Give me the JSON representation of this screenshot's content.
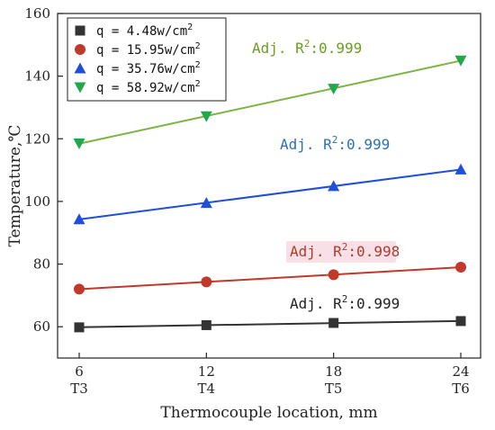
{
  "chart_data": {
    "type": "line",
    "xlabel": "Thermocouple location, mm",
    "ylabel": "Temperature,℃",
    "x": [
      6,
      12,
      18,
      24
    ],
    "x_secondary_labels": [
      "T3",
      "T4",
      "T5",
      "T6"
    ],
    "xlim": [
      6,
      24
    ],
    "ylim": [
      50,
      160
    ],
    "yticks": [
      60,
      80,
      100,
      120,
      140,
      160
    ],
    "grid": false,
    "legend_position": "top-left",
    "series": [
      {
        "name": "q = 4.48w/cm",
        "name_superscript": "2",
        "marker": "square",
        "color": "#333333",
        "values": [
          59.8,
          60.5,
          61.2,
          61.8
        ],
        "fit_label": {
          "prefix": "Adj. R",
          "sup": "2",
          "suffix": ":0.999",
          "color": "#222222"
        }
      },
      {
        "name": "q = 15.95w/cm",
        "name_superscript": "2",
        "marker": "circle",
        "color": "#c0392b",
        "values": [
          72.0,
          74.3,
          76.6,
          79.0
        ],
        "fit_label": {
          "prefix": "Adj. R",
          "sup": "2",
          "suffix": ":0.998",
          "color": "#b03a2e"
        }
      },
      {
        "name": "q = 35.76w/cm",
        "name_superscript": "2",
        "marker": "triangle-up",
        "color": "#1f4fd8",
        "values": [
          94.3,
          99.5,
          104.9,
          110.2
        ],
        "fit_label": {
          "prefix": "Adj. R",
          "sup": "2",
          "suffix": ":0.999",
          "color": "#2e6fb5"
        }
      },
      {
        "name": "q = 58.92w/cm",
        "name_superscript": "2",
        "marker": "triangle-down",
        "color": "#22a84a",
        "values": [
          118.5,
          127.2,
          136.0,
          145.0
        ],
        "fit_label": {
          "prefix": "Adj. R",
          "sup": "2",
          "suffix": ":0.999",
          "color": "#6a9e1f"
        }
      }
    ]
  },
  "colors": {
    "fit_line": "#7cb342",
    "red_label_highlight": "#f4c6d2"
  }
}
